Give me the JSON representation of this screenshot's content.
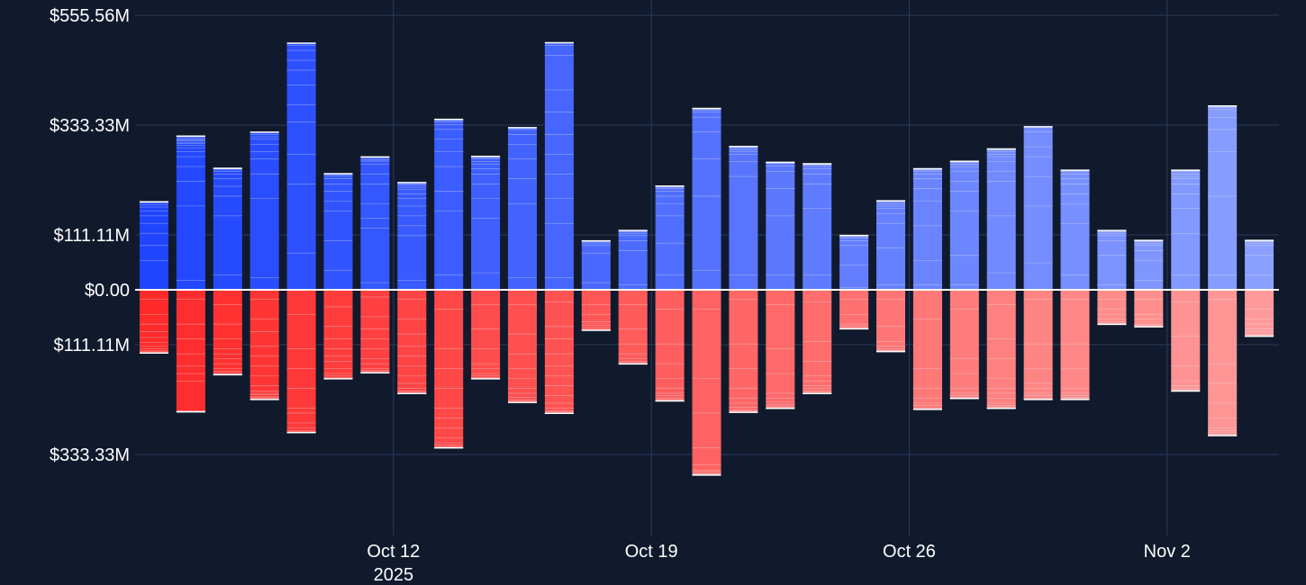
{
  "chart_data": {
    "type": "bar",
    "stacked": true,
    "currency": "$",
    "y_axis": {
      "range": [
        -444.44,
        555.56
      ],
      "ticks": [
        {
          "value": 555.56,
          "label": "$555.56M"
        },
        {
          "value": 333.33,
          "label": "$333.33M"
        },
        {
          "value": 111.11,
          "label": "$111.11M"
        },
        {
          "value": 0,
          "label": "$0.00"
        },
        {
          "value": -111.11,
          "label": "$111.11M"
        },
        {
          "value": -333.33,
          "label": "$333.33M"
        }
      ]
    },
    "x_axis": {
      "ticks": [
        {
          "index": 6.5,
          "label": "Oct 12",
          "sublabel": "2025"
        },
        {
          "index": 13.5,
          "label": "Oct 19",
          "sublabel": ""
        },
        {
          "index": 20.5,
          "label": "Oct 26",
          "sublabel": ""
        },
        {
          "index": 27.5,
          "label": "Nov 2",
          "sublabel": ""
        }
      ]
    },
    "positive_color_start": "#1f45ff",
    "positive_color_end": "#8a9fff",
    "negative_color_start": "#ff2a2a",
    "negative_color_end": "#ff9a9a",
    "days": [
      {
        "pos": [
          60,
          30,
          25,
          20,
          15,
          10,
          8,
          5,
          3,
          2
        ],
        "neg": [
          20,
          30,
          20,
          15,
          12,
          10,
          8,
          5,
          4,
          2,
          2
        ]
      },
      {
        "pos": [
          20,
          150,
          50,
          30,
          20,
          10,
          8,
          5,
          3,
          3,
          3,
          2,
          2,
          2,
          2,
          1
        ],
        "neg": [
          20,
          50,
          30,
          30,
          25,
          15,
          15,
          60,
          2
        ]
      },
      {
        "pos": [
          30,
          120,
          40,
          20,
          15,
          10,
          5,
          3,
          2,
          1
        ],
        "neg": [
          30,
          40,
          30,
          20,
          10,
          10,
          10,
          10,
          5,
          3,
          2,
          2
        ]
      },
      {
        "pos": [
          25,
          160,
          50,
          30,
          15,
          15,
          10,
          5,
          5,
          4
        ],
        "neg": [
          20,
          40,
          25,
          30,
          20,
          20,
          20,
          20,
          10,
          5,
          3,
          3,
          2,
          2,
          2
        ]
      },
      {
        "pos": [
          75,
          140,
          60,
          65,
          35,
          40,
          30,
          20,
          20,
          10,
          4
        ],
        "neg": [
          50,
          70,
          40,
          40,
          40,
          10,
          20,
          10,
          5,
          3,
          1
        ]
      },
      {
        "pos": [
          40,
          60,
          60,
          20,
          20,
          15,
          10,
          5,
          3,
          2
        ],
        "neg": [
          35,
          40,
          25,
          20,
          15,
          10,
          15,
          10,
          5,
          3,
          2
        ]
      },
      {
        "pos": [
          15,
          110,
          20,
          30,
          40,
          20,
          20,
          6,
          3,
          3,
          2
        ],
        "neg": [
          15,
          40,
          25,
          20,
          20,
          20,
          10,
          10,
          3,
          3,
          2
        ]
      },
      {
        "pos": [
          20,
          90,
          20,
          20,
          20,
          15,
          10,
          8,
          5,
          4,
          3,
          2
        ],
        "neg": [
          20,
          40,
          30,
          25,
          20,
          20,
          20,
          15,
          10,
          5,
          3,
          2
        ]
      },
      {
        "pos": [
          30,
          130,
          40,
          50,
          30,
          25,
          20,
          10,
          5,
          3,
          2
        ],
        "neg": [
          40,
          80,
          40,
          40,
          40,
          20,
          20,
          20,
          10,
          5,
          3,
          2
        ]
      },
      {
        "pos": [
          35,
          110,
          40,
          30,
          20,
          10,
          10,
          5,
          5,
          3,
          2
        ],
        "neg": [
          30,
          50,
          40,
          30,
          10,
          10,
          5,
          3,
          2
        ]
      },
      {
        "pos": [
          25,
          150,
          50,
          40,
          30,
          20,
          10,
          3
        ],
        "neg": [
          30,
          60,
          40,
          30,
          20,
          20,
          10,
          8,
          5,
          3,
          2
        ]
      },
      {
        "pos": [
          25,
          110,
          50,
          50,
          40,
          40,
          45,
          45,
          70,
          20,
          5
        ],
        "neg": [
          25,
          50,
          25,
          30,
          25,
          20,
          20,
          20,
          15,
          10,
          5,
          3,
          2
        ]
      },
      {
        "pos": [
          15,
          60,
          15,
          5,
          3,
          1
        ],
        "neg": [
          30,
          20,
          15,
          8,
          5,
          3,
          1
        ]
      },
      {
        "pos": [
          10,
          70,
          20,
          10,
          5,
          3,
          2
        ],
        "neg": [
          30,
          50,
          30,
          20,
          10,
          5,
          3,
          2
        ]
      },
      {
        "pos": [
          30,
          65,
          55,
          25,
          15,
          10,
          5,
          3,
          2
        ],
        "neg": [
          40,
          70,
          40,
          30,
          20,
          10,
          5,
          5,
          3,
          2
        ]
      },
      {
        "pos": [
          40,
          150,
          75,
          55,
          30,
          10,
          4,
          2,
          1
        ],
        "neg": [
          40,
          140,
          70,
          70,
          35,
          10,
          3,
          3,
          2,
          1,
          1
        ]
      },
      {
        "pos": [
          30,
          200,
          30,
          15,
          5,
          4,
          3,
          3
        ],
        "neg": [
          20,
          90,
          50,
          40,
          20,
          10,
          8,
          5,
          3,
          2
        ]
      },
      {
        "pos": [
          30,
          120,
          55,
          35,
          11,
          5,
          2
        ],
        "neg": [
          30,
          90,
          50,
          40,
          10,
          8,
          5,
          3,
          2,
          2
        ]
      },
      {
        "pos": [
          30,
          135,
          50,
          20,
          10,
          5,
          3,
          1,
          1
        ],
        "neg": [
          25,
          80,
          40,
          30,
          10,
          10,
          5,
          5,
          3,
          2
        ]
      },
      {
        "pos": [
          5,
          45,
          40,
          10,
          5,
          3,
          2
        ],
        "neg": [
          20,
          30,
          20,
          5,
          3,
          1
        ]
      },
      {
        "pos": [
          10,
          75,
          50,
          20,
          10,
          5,
          5,
          3,
          2
        ],
        "neg": [
          20,
          55,
          30,
          10,
          5,
          3,
          2
        ]
      },
      {
        "pos": [
          10,
          50,
          70,
          50,
          25,
          20,
          10,
          5,
          3,
          2
        ],
        "neg": [
          60,
          100,
          40,
          20,
          10,
          5,
          5,
          2
        ]
      },
      {
        "pos": [
          10,
          60,
          90,
          40,
          20,
          20,
          10,
          5,
          3,
          2
        ],
        "neg": [
          40,
          100,
          30,
          30,
          10,
          5,
          3,
          2
        ]
      },
      {
        "pos": [
          35,
          115,
          70,
          20,
          20,
          10,
          5,
          5,
          3,
          2
        ],
        "neg": [
          30,
          70,
          40,
          40,
          20,
          10,
          10,
          10,
          5,
          3,
          2
        ]
      },
      {
        "pos": [
          55,
          115,
          60,
          40,
          20,
          30,
          10
        ],
        "neg": [
          20,
          90,
          50,
          30,
          10,
          10,
          5,
          5,
          2
        ]
      },
      {
        "pos": [
          30,
          105,
          40,
          20,
          20,
          10,
          10,
          5,
          2
        ],
        "neg": [
          20,
          90,
          50,
          40,
          10,
          5,
          3,
          2,
          2
        ]
      },
      {
        "pos": [
          10,
          60,
          30,
          10,
          5,
          3,
          2
        ],
        "neg": [
          20,
          20,
          10,
          10,
          5,
          3,
          2
        ]
      },
      {
        "pos": [
          20,
          40,
          20,
          10,
          5,
          3,
          2
        ],
        "neg": [
          20,
          30,
          10,
          10,
          3,
          2
        ]
      },
      {
        "pos": [
          30,
          85,
          50,
          30,
          20,
          10,
          5,
          5,
          5,
          2
        ],
        "neg": [
          25,
          70,
          60,
          30,
          10,
          5,
          3,
          2
        ]
      },
      {
        "pos": [
          30,
          160,
          90,
          45,
          25,
          15,
          5,
          2
        ],
        "neg": [
          20,
          130,
          40,
          40,
          30,
          20,
          5,
          5,
          3,
          2
        ]
      },
      {
        "pos": [
          30,
          40,
          20,
          5,
          3,
          1,
          1
        ],
        "neg": [
          40,
          20,
          10,
          10,
          5,
          5,
          3,
          1
        ]
      }
    ]
  }
}
